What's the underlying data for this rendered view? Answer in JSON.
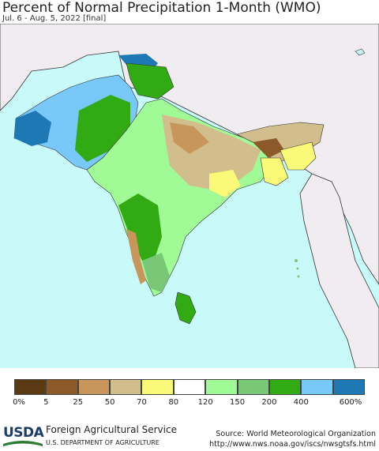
{
  "title": "Percent of Normal Precipitation 1-Month (WMO)",
  "subtitle": "Jul. 6 - Aug. 5, 2022 [final]",
  "legend": {
    "colors": [
      "#5a3a12",
      "#8c5a28",
      "#c8965a",
      "#d2be8c",
      "#fafa78",
      "#ffffff",
      "#a0fa96",
      "#78c878",
      "#32aa14",
      "#78c8fa",
      "#1e78b4"
    ],
    "labels": [
      "0%",
      "5",
      "25",
      "50",
      "70",
      "80",
      "120",
      "150",
      "200",
      "400",
      "600%"
    ]
  },
  "footer": {
    "logo_text": "USDA",
    "agency": "Foreign Agricultural Service",
    "department": "U.S. DEPARTMENT OF AGRICULTURE",
    "source": "Source: World Meteorological Organization",
    "url": "http://www.nws.noaa.gov/iscs/nwsgtsfs.html"
  },
  "map": {
    "region": "South Asia",
    "colors": {
      "ocean": "#c8fafa",
      "outside_land": "#f0ecf0",
      "border": "#333333"
    }
  }
}
